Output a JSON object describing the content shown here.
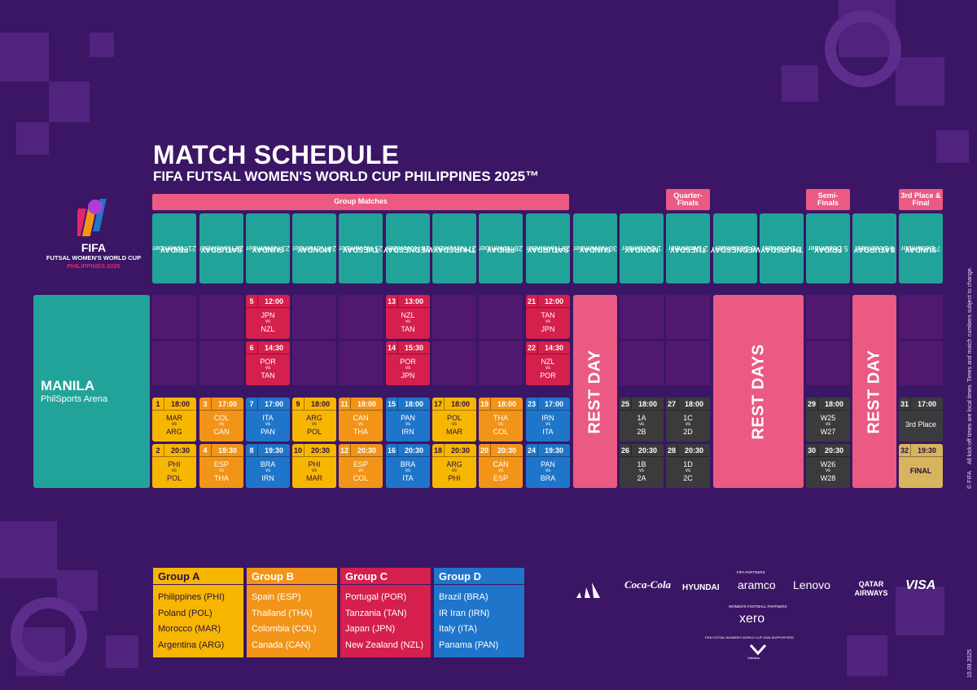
{
  "header": {
    "title": "MATCH SCHEDULE",
    "subtitle": "FIFA FUTSAL WOMEN'S WORLD CUP PHILIPPINES 2025™"
  },
  "logo": {
    "brand": "FIFA",
    "line1": "FUTSAL WOMEN'S WORLD CUP",
    "line2": "PHILIPPINES 2025",
    "tm": "™"
  },
  "phases": {
    "group": "Group Matches",
    "quarter": "Quarter-\nFinals",
    "semi": "Semi-\nFinals",
    "final": "3rd Place &\nFinal"
  },
  "days": [
    {
      "weekday": "FRIDAY",
      "date": "21 November"
    },
    {
      "weekday": "SATURDAY",
      "date": "22 November"
    },
    {
      "weekday": "SUNDAY",
      "date": "23 November"
    },
    {
      "weekday": "MONDAY",
      "date": "24 November"
    },
    {
      "weekday": "TUESDAY",
      "date": "25 November"
    },
    {
      "weekday": "WEDNESDAY",
      "date": "26 November"
    },
    {
      "weekday": "THURSDAY",
      "date": "27 November"
    },
    {
      "weekday": "FRIDAY",
      "date": "28 November"
    },
    {
      "weekday": "SATURDAY",
      "date": "29 November"
    },
    {
      "weekday": "SUNDAY",
      "date": "30 November"
    },
    {
      "weekday": "MONDAY",
      "date": "1 December"
    },
    {
      "weekday": "TUESDAY",
      "date": "2 December"
    },
    {
      "weekday": "WEDNESDAY",
      "date": "3 December"
    },
    {
      "weekday": "THURSDAY",
      "date": "4 December"
    },
    {
      "weekday": "FRIDAY",
      "date": "5 December"
    },
    {
      "weekday": "SATURDAY",
      "date": "6 December"
    },
    {
      "weekday": "SUNDAY",
      "date": "7 December"
    }
  ],
  "venue": {
    "city": "MANILA",
    "arena": "PhilSports Arena"
  },
  "rest": {
    "day_label": "REST DAY",
    "days_label": "REST DAYS"
  },
  "vs": "vs",
  "matches": [
    {
      "no": "5",
      "time": "12:00",
      "home": "JPN",
      "away": "NZL",
      "group": "C",
      "day": 2,
      "row": 0
    },
    {
      "no": "6",
      "time": "14:30",
      "home": "POR",
      "away": "TAN",
      "group": "C",
      "day": 2,
      "row": 1
    },
    {
      "no": "13",
      "time": "13:00",
      "home": "NZL",
      "away": "TAN",
      "group": "C",
      "day": 5,
      "row": 0
    },
    {
      "no": "14",
      "time": "15:30",
      "home": "POR",
      "away": "JPN",
      "group": "C",
      "day": 5,
      "row": 1
    },
    {
      "no": "21",
      "time": "12:00",
      "home": "TAN",
      "away": "JPN",
      "group": "C",
      "day": 8,
      "row": 0
    },
    {
      "no": "22",
      "time": "14:30",
      "home": "NZL",
      "away": "POR",
      "group": "C",
      "day": 8,
      "row": 1
    },
    {
      "no": "1",
      "time": "18:00",
      "home": "MAR",
      "away": "ARG",
      "group": "A",
      "day": 0,
      "row": 2
    },
    {
      "no": "2",
      "time": "20:30",
      "home": "PHI",
      "away": "POL",
      "group": "A",
      "day": 0,
      "row": 3
    },
    {
      "no": "3",
      "time": "17:00",
      "home": "COL",
      "away": "CAN",
      "group": "B",
      "day": 1,
      "row": 2
    },
    {
      "no": "4",
      "time": "19:30",
      "home": "ESP",
      "away": "THA",
      "group": "B",
      "day": 1,
      "row": 3
    },
    {
      "no": "7",
      "time": "17:00",
      "home": "ITA",
      "away": "PAN",
      "group": "D",
      "day": 2,
      "row": 2
    },
    {
      "no": "8",
      "time": "19:30",
      "home": "BRA",
      "away": "IRN",
      "group": "D",
      "day": 2,
      "row": 3
    },
    {
      "no": "9",
      "time": "18:00",
      "home": "ARG",
      "away": "POL",
      "group": "A",
      "day": 3,
      "row": 2
    },
    {
      "no": "10",
      "time": "20:30",
      "home": "PHI",
      "away": "MAR",
      "group": "A",
      "day": 3,
      "row": 3
    },
    {
      "no": "11",
      "time": "18:00",
      "home": "CAN",
      "away": "THA",
      "group": "B",
      "day": 4,
      "row": 2
    },
    {
      "no": "12",
      "time": "20:30",
      "home": "ESP",
      "away": "COL",
      "group": "B",
      "day": 4,
      "row": 3
    },
    {
      "no": "15",
      "time": "18:00",
      "home": "PAN",
      "away": "IRN",
      "group": "D",
      "day": 5,
      "row": 2
    },
    {
      "no": "16",
      "time": "20:30",
      "home": "BRA",
      "away": "ITA",
      "group": "D",
      "day": 5,
      "row": 3
    },
    {
      "no": "17",
      "time": "18:00",
      "home": "POL",
      "away": "MAR",
      "group": "A",
      "day": 6,
      "row": 2
    },
    {
      "no": "18",
      "time": "20:30",
      "home": "ARG",
      "away": "PHI",
      "group": "A",
      "day": 6,
      "row": 3
    },
    {
      "no": "19",
      "time": "18:00",
      "home": "THA",
      "away": "COL",
      "group": "B",
      "day": 7,
      "row": 2
    },
    {
      "no": "20",
      "time": "20:30",
      "home": "CAN",
      "away": "ESP",
      "group": "B",
      "day": 7,
      "row": 3
    },
    {
      "no": "23",
      "time": "17:00",
      "home": "IRN",
      "away": "ITA",
      "group": "D",
      "day": 8,
      "row": 2
    },
    {
      "no": "24",
      "time": "19:30",
      "home": "PAN",
      "away": "BRA",
      "group": "D",
      "day": 8,
      "row": 3
    },
    {
      "no": "25",
      "time": "18:00",
      "home": "1A",
      "away": "2B",
      "group": "K",
      "day": 10,
      "row": 2
    },
    {
      "no": "26",
      "time": "20:30",
      "home": "1B",
      "away": "2A",
      "group": "K",
      "day": 10,
      "row": 3
    },
    {
      "no": "27",
      "time": "18:00",
      "home": "1C",
      "away": "2D",
      "group": "K",
      "day": 11,
      "row": 2
    },
    {
      "no": "28",
      "time": "20:30",
      "home": "1D",
      "away": "2C",
      "group": "K",
      "day": 11,
      "row": 3
    },
    {
      "no": "29",
      "time": "18:00",
      "home": "W25",
      "away": "W27",
      "group": "K",
      "day": 14,
      "row": 2
    },
    {
      "no": "30",
      "time": "20:30",
      "home": "W26",
      "away": "W28",
      "group": "K",
      "day": 14,
      "row": 3
    },
    {
      "no": "31",
      "time": "17:00",
      "single": "3rd Place",
      "group": "K",
      "day": 16,
      "row": 2
    },
    {
      "no": "32",
      "time": "19:30",
      "single": "FINAL",
      "group": "F",
      "day": 16,
      "row": 3
    }
  ],
  "groups": [
    {
      "name": "Group A",
      "teams": [
        "Philippines (PHI)",
        "Poland (POL)",
        "Morocco (MAR)",
        "Argentina (ARG)"
      ],
      "color": "#f7b700"
    },
    {
      "name": "Group B",
      "teams": [
        "Spain (ESP)",
        "Thailand (THA)",
        "Colombia (COL)",
        "Canada (CAN)"
      ],
      "color": "#f29418"
    },
    {
      "name": "Group C",
      "teams": [
        "Portugal (POR)",
        "Tanzania (TAN)",
        "Japan (JPN)",
        "New Zealand (NZL)"
      ],
      "color": "#d51f4c"
    },
    {
      "name": "Group D",
      "teams": [
        "Brazil (BRA)",
        "IR Iran (IRN)",
        "Italy (ITA)",
        "Panama (PAN)"
      ],
      "color": "#1f75c9"
    }
  ],
  "sponsors": {
    "partners_label": "FIFA PARTNERS",
    "partners": [
      "Coca-Cola",
      "HYUNDAI",
      "aramco",
      "Lenovo",
      "QATAR AIRWAYS",
      "VISA"
    ],
    "womens_label": "WOMEN'S FOOTBALL PARTNERS",
    "womens": "xero",
    "supporters_label": "FIFA FUTSAL WOMEN'S WORLD CUP 2025 SUPPORTERS",
    "supporter": "Valiollow"
  },
  "side_notes": {
    "disclaimer": "All kick-off times are local times. Times and match numbers subject to change.",
    "copyright": "© FIFA",
    "date": "15.09.2025"
  },
  "colors": {
    "background": "#3a1665",
    "teal": "#22a39a",
    "pink": "#ea5a82",
    "groupA": "#f7b700",
    "groupB": "#f29418",
    "groupC": "#d51f4c",
    "groupD": "#1f75c9",
    "knockout": "#3b3b3d",
    "final": "#d6b55e"
  }
}
